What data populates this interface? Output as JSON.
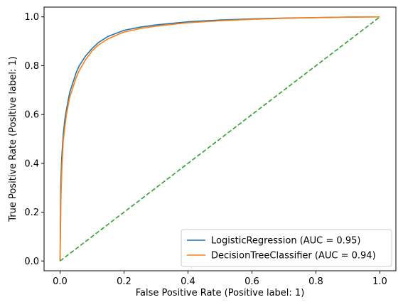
{
  "chart_data": {
    "type": "line",
    "xlabel": "False Positive Rate (Positive label: 1)",
    "ylabel": "True Positive Rate (Positive label: 1)",
    "xlim": [
      -0.05,
      1.05
    ],
    "ylim": [
      -0.04,
      1.04
    ],
    "xticks": [
      0.0,
      0.2,
      0.4,
      0.6,
      0.8,
      1.0
    ],
    "yticks": [
      0.0,
      0.2,
      0.4,
      0.6,
      0.8,
      1.0
    ],
    "xtick_labels": [
      "0.0",
      "0.2",
      "0.4",
      "0.6",
      "0.8",
      "1.0"
    ],
    "ytick_labels": [
      "0.0",
      "0.2",
      "0.4",
      "0.6",
      "0.8",
      "1.0"
    ],
    "grid": false,
    "legend_position": "bottom-right",
    "series": [
      {
        "name": "LogisticRegression (AUC = 0.95)",
        "color": "#1f77b4",
        "style": "solid",
        "x": [
          0.0,
          0.002,
          0.005,
          0.01,
          0.015,
          0.02,
          0.03,
          0.04,
          0.05,
          0.06,
          0.08,
          0.1,
          0.12,
          0.15,
          0.2,
          0.25,
          0.3,
          0.4,
          0.5,
          0.6,
          0.7,
          0.8,
          0.9,
          1.0
        ],
        "y": [
          0.0,
          0.3,
          0.42,
          0.52,
          0.58,
          0.62,
          0.69,
          0.73,
          0.77,
          0.8,
          0.84,
          0.87,
          0.895,
          0.92,
          0.945,
          0.958,
          0.967,
          0.98,
          0.987,
          0.992,
          0.995,
          0.997,
          0.999,
          1.0
        ]
      },
      {
        "name": "DecisionTreeClassifier (AUC = 0.94)",
        "color": "#ff7f0e",
        "style": "solid",
        "x": [
          0.0,
          0.003,
          0.006,
          0.01,
          0.015,
          0.02,
          0.03,
          0.04,
          0.05,
          0.06,
          0.08,
          0.1,
          0.12,
          0.15,
          0.2,
          0.25,
          0.3,
          0.4,
          0.5,
          0.6,
          0.7,
          0.8,
          0.9,
          1.0
        ],
        "y": [
          0.0,
          0.27,
          0.39,
          0.49,
          0.55,
          0.6,
          0.67,
          0.71,
          0.75,
          0.78,
          0.825,
          0.86,
          0.885,
          0.91,
          0.938,
          0.952,
          0.962,
          0.976,
          0.984,
          0.99,
          0.994,
          0.997,
          0.999,
          1.0
        ]
      },
      {
        "name": "",
        "color": "#2ca02c",
        "style": "dashed",
        "x": [
          0.0,
          1.0
        ],
        "y": [
          0.0,
          1.0
        ]
      }
    ]
  }
}
